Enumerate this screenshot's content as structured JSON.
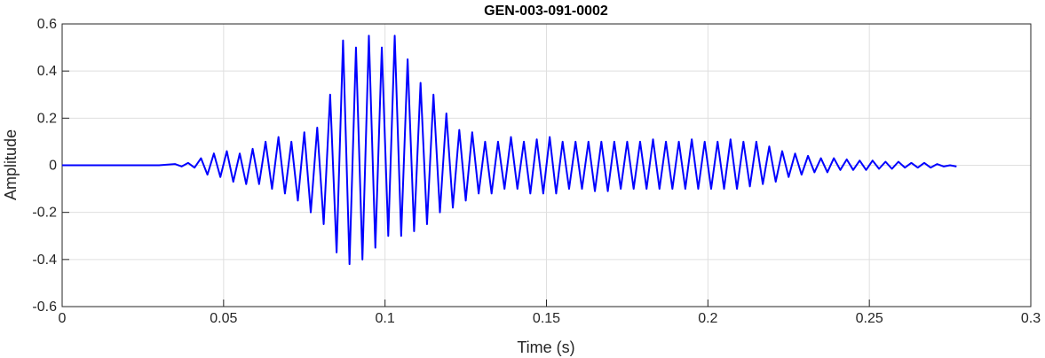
{
  "chart_data": {
    "type": "line",
    "title": "GEN-003-091-0002",
    "xlabel": "Time (s)",
    "ylabel": "Amplitude",
    "xlim": [
      0,
      0.3
    ],
    "ylim": [
      -0.6,
      0.6
    ],
    "xticks": [
      0,
      0.05,
      0.1,
      0.15,
      0.2,
      0.25,
      0.3
    ],
    "xtick_labels": [
      "0",
      "0.05",
      "0.1",
      "0.15",
      "0.2",
      "0.25",
      "0.3"
    ],
    "yticks": [
      -0.6,
      -0.4,
      -0.2,
      0,
      0.2,
      0.4,
      0.6
    ],
    "ytick_labels": [
      "-0.6",
      "-0.4",
      "-0.2",
      "0",
      "0.2",
      "0.4",
      "0.6"
    ],
    "grid": true,
    "line_color": "#0000ff",
    "series": [
      {
        "x": [
          0,
          0.005,
          0.01,
          0.015,
          0.02,
          0.025,
          0.03,
          0.035,
          0.037,
          0.039,
          0.041,
          0.043,
          0.045,
          0.047,
          0.049,
          0.051,
          0.053,
          0.055,
          0.057,
          0.059,
          0.061,
          0.063,
          0.065,
          0.067,
          0.069,
          0.071,
          0.073,
          0.075,
          0.077,
          0.079,
          0.081,
          0.083,
          0.085,
          0.087,
          0.089,
          0.091,
          0.093,
          0.095,
          0.097,
          0.099,
          0.101,
          0.103,
          0.105,
          0.107,
          0.109,
          0.111,
          0.113,
          0.115,
          0.117,
          0.119,
          0.121,
          0.123,
          0.125,
          0.127,
          0.129,
          0.131,
          0.133,
          0.135,
          0.137,
          0.139,
          0.141,
          0.143,
          0.145,
          0.147,
          0.149,
          0.151,
          0.153,
          0.155,
          0.157,
          0.159,
          0.161,
          0.163,
          0.165,
          0.167,
          0.169,
          0.171,
          0.173,
          0.175,
          0.177,
          0.179,
          0.181,
          0.183,
          0.185,
          0.187,
          0.189,
          0.191,
          0.193,
          0.195,
          0.197,
          0.199,
          0.201,
          0.203,
          0.205,
          0.207,
          0.209,
          0.211,
          0.213,
          0.215,
          0.217,
          0.219,
          0.221,
          0.223,
          0.225,
          0.227,
          0.229,
          0.231,
          0.233,
          0.235,
          0.237,
          0.239,
          0.241,
          0.243,
          0.245,
          0.247,
          0.249,
          0.251,
          0.253,
          0.255,
          0.257,
          0.259,
          0.261,
          0.263,
          0.265,
          0.267,
          0.269,
          0.271,
          0.273,
          0.275,
          0.277
        ],
        "y": [
          0,
          0,
          0,
          0,
          0,
          0,
          0,
          0.005,
          -0.005,
          0.01,
          -0.01,
          0.03,
          -0.04,
          0.05,
          -0.05,
          0.06,
          -0.07,
          0.05,
          -0.08,
          0.07,
          -0.08,
          0.1,
          -0.1,
          0.12,
          -0.12,
          0.1,
          -0.15,
          0.14,
          -0.2,
          0.16,
          -0.25,
          0.3,
          -0.37,
          0.53,
          -0.42,
          0.5,
          -0.4,
          0.55,
          -0.35,
          0.5,
          -0.3,
          0.55,
          -0.3,
          0.45,
          -0.28,
          0.35,
          -0.25,
          0.3,
          -0.2,
          0.22,
          -0.18,
          0.15,
          -0.15,
          0.14,
          -0.12,
          0.1,
          -0.12,
          0.1,
          -0.1,
          0.12,
          -0.1,
          0.1,
          -0.12,
          0.11,
          -0.12,
          0.12,
          -0.12,
          0.1,
          -0.1,
          0.1,
          -0.1,
          0.1,
          -0.11,
          0.1,
          -0.11,
          0.1,
          -0.1,
          0.1,
          -0.1,
          0.1,
          -0.1,
          0.11,
          -0.1,
          0.1,
          -0.1,
          0.1,
          -0.1,
          0.11,
          -0.1,
          0.1,
          -0.1,
          0.1,
          -0.1,
          0.11,
          -0.1,
          0.1,
          -0.09,
          0.1,
          -0.08,
          0.08,
          -0.07,
          0.06,
          -0.05,
          0.05,
          -0.04,
          0.04,
          -0.03,
          0.03,
          -0.03,
          0.03,
          -0.02,
          0.025,
          -0.02,
          0.02,
          -0.02,
          0.02,
          -0.015,
          0.015,
          -0.015,
          0.015,
          -0.01,
          0.01,
          -0.01,
          0.01,
          -0.01,
          0.005,
          -0.005,
          0,
          -0.005
        ]
      }
    ]
  }
}
